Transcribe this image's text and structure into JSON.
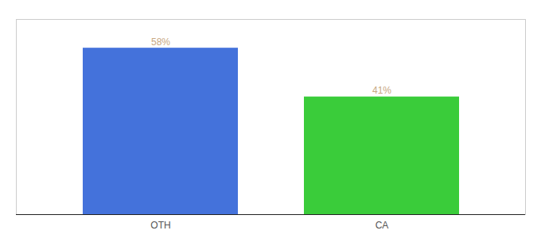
{
  "chart_data": {
    "type": "bar",
    "categories": [
      "OTH",
      "CA"
    ],
    "values": [
      58,
      41
    ],
    "colors": [
      "#4472db",
      "#3acc3a"
    ],
    "ylim": [
      0,
      68
    ],
    "data_labels": true,
    "value_labels": [
      "58%",
      "41%"
    ],
    "tick_labels": "x"
  }
}
